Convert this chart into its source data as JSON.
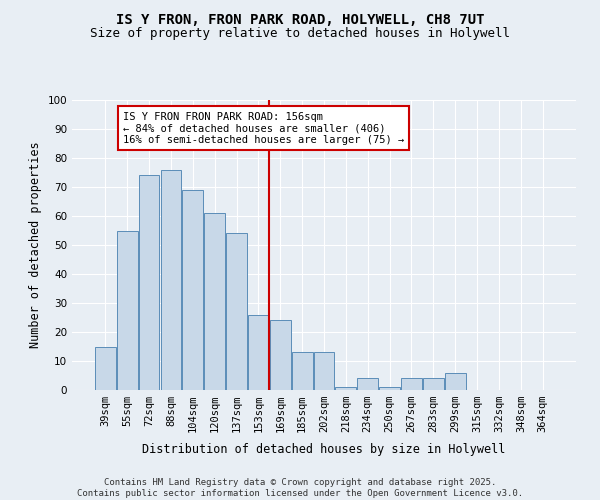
{
  "title": "IS Y FRON, FRON PARK ROAD, HOLYWELL, CH8 7UT",
  "subtitle": "Size of property relative to detached houses in Holywell",
  "xlabel": "Distribution of detached houses by size in Holywell",
  "ylabel": "Number of detached properties",
  "categories": [
    "39sqm",
    "55sqm",
    "72sqm",
    "88sqm",
    "104sqm",
    "120sqm",
    "137sqm",
    "153sqm",
    "169sqm",
    "185sqm",
    "202sqm",
    "218sqm",
    "234sqm",
    "250sqm",
    "267sqm",
    "283sqm",
    "299sqm",
    "315sqm",
    "332sqm",
    "348sqm",
    "364sqm"
  ],
  "values": [
    15,
    55,
    74,
    76,
    69,
    61,
    54,
    26,
    24,
    13,
    13,
    1,
    4,
    1,
    4,
    4,
    6,
    0,
    0,
    0,
    0
  ],
  "bar_color": "#c8d8e8",
  "bar_edge_color": "#5b8db8",
  "vline_color": "#cc0000",
  "annotation_text": "IS Y FRON FRON PARK ROAD: 156sqm\n← 84% of detached houses are smaller (406)\n16% of semi-detached houses are larger (75) →",
  "annotation_box_color": "#ffffff",
  "annotation_box_edge_color": "#cc0000",
  "ylim": [
    0,
    100
  ],
  "yticks": [
    0,
    10,
    20,
    30,
    40,
    50,
    60,
    70,
    80,
    90,
    100
  ],
  "background_color": "#e8eef4",
  "grid_color": "#ffffff",
  "footer": "Contains HM Land Registry data © Crown copyright and database right 2025.\nContains public sector information licensed under the Open Government Licence v3.0.",
  "title_fontsize": 10,
  "subtitle_fontsize": 9,
  "label_fontsize": 8.5,
  "tick_fontsize": 7.5,
  "annotation_fontsize": 7.5,
  "footer_fontsize": 6.5
}
